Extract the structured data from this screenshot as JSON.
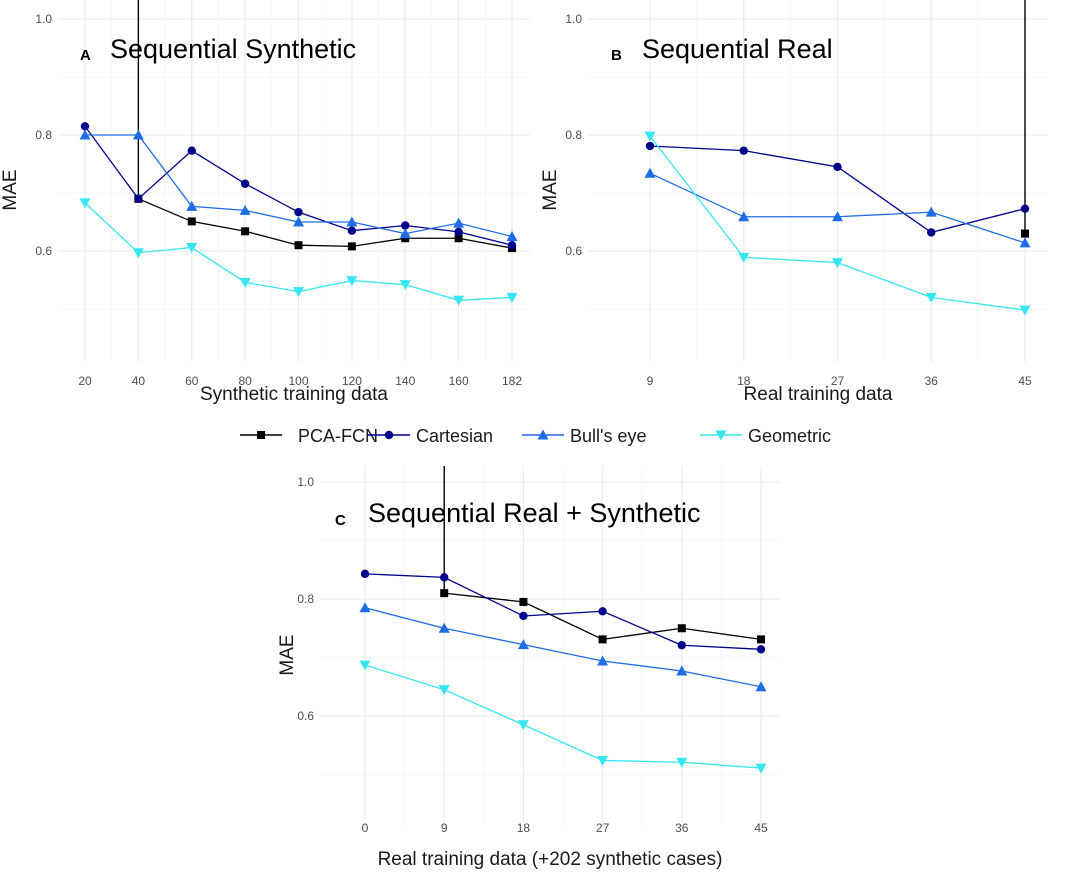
{
  "colors": {
    "PCA-FCN": "#000000",
    "Cartesian": "#00008b",
    "Bull's eye": "#1e6ce6",
    "Geometric": "#36e6f0"
  },
  "legend": [
    {
      "name": "PCA-FCN",
      "shape": "square"
    },
    {
      "name": "Cartesian",
      "shape": "circle"
    },
    {
      "name": "Bull's eye",
      "shape": "triangle-up"
    },
    {
      "name": "Geometric",
      "shape": "triangle-down"
    }
  ],
  "chart_data": [
    {
      "type": "line",
      "letter": "A",
      "title": "Sequential Synthetic",
      "xlabel": "Synthetic training data",
      "ylabel": "MAE",
      "categories": [
        "20",
        "40",
        "60",
        "80",
        "100",
        "120",
        "140",
        "160",
        "182"
      ],
      "yticks": [
        "0.6",
        "0.8",
        "1.0"
      ],
      "ylim": [
        0.48,
        1.0
      ],
      "series": [
        {
          "name": "PCA-FCN",
          "values": [
            null,
            0.69,
            0.651,
            0.634,
            0.61,
            0.608,
            0.622,
            0.622,
            0.605
          ],
          "errorbars": [
            {
              "index": 1,
              "low": 0.69,
              "high": 1.1
            }
          ]
        },
        {
          "name": "Cartesian",
          "values": [
            0.815,
            0.69,
            0.773,
            0.716,
            0.667,
            0.635,
            0.644,
            0.633,
            0.61
          ]
        },
        {
          "name": "Bull's eye",
          "values": [
            0.8,
            0.8,
            0.677,
            0.67,
            0.65,
            0.65,
            0.63,
            0.648,
            0.625
          ]
        },
        {
          "name": "Geometric",
          "values": [
            0.683,
            0.597,
            0.606,
            0.546,
            0.53,
            0.549,
            0.542,
            0.515,
            0.52
          ]
        }
      ]
    },
    {
      "type": "line",
      "letter": "B",
      "title": "Sequential Real",
      "xlabel": "Real training data",
      "ylabel": "MAE",
      "categories": [
        "9",
        "18",
        "27",
        "36",
        "45"
      ],
      "yticks": [
        "0.6",
        "0.8",
        "1.0"
      ],
      "ylim": [
        0.48,
        1.0
      ],
      "series": [
        {
          "name": "PCA-FCN",
          "values": [
            null,
            null,
            null,
            null,
            0.63
          ],
          "errorbars": [
            {
              "index": 4,
              "low": 0.63,
              "high": 1.1
            }
          ]
        },
        {
          "name": "Cartesian",
          "values": [
            0.781,
            0.773,
            0.745,
            0.632,
            0.673
          ]
        },
        {
          "name": "Bull's eye",
          "values": [
            0.734,
            0.659,
            0.659,
            0.667,
            0.614
          ]
        },
        {
          "name": "Geometric",
          "values": [
            0.798,
            0.589,
            0.58,
            0.52,
            0.498
          ]
        }
      ]
    },
    {
      "type": "line",
      "letter": "C",
      "title": "Sequential Real + Synthetic",
      "xlabel": "Real training data (+202 synthetic cases)",
      "ylabel": "MAE",
      "categories": [
        "0",
        "9",
        "18",
        "27",
        "36",
        "45"
      ],
      "yticks": [
        "0.6",
        "0.8",
        "1.0"
      ],
      "ylim": [
        0.48,
        1.0
      ],
      "series": [
        {
          "name": "PCA-FCN",
          "values": [
            null,
            0.81,
            0.795,
            0.731,
            0.75,
            0.731
          ],
          "errorbars": [
            {
              "index": 1,
              "low": 0.81,
              "high": 1.04
            }
          ]
        },
        {
          "name": "Cartesian",
          "values": [
            0.843,
            0.837,
            0.771,
            0.779,
            0.721,
            0.714
          ]
        },
        {
          "name": "Bull's eye",
          "values": [
            0.785,
            0.75,
            0.722,
            0.694,
            0.677,
            0.65
          ]
        },
        {
          "name": "Geometric",
          "values": [
            0.687,
            0.645,
            0.585,
            0.524,
            0.521,
            0.511
          ]
        }
      ]
    }
  ]
}
